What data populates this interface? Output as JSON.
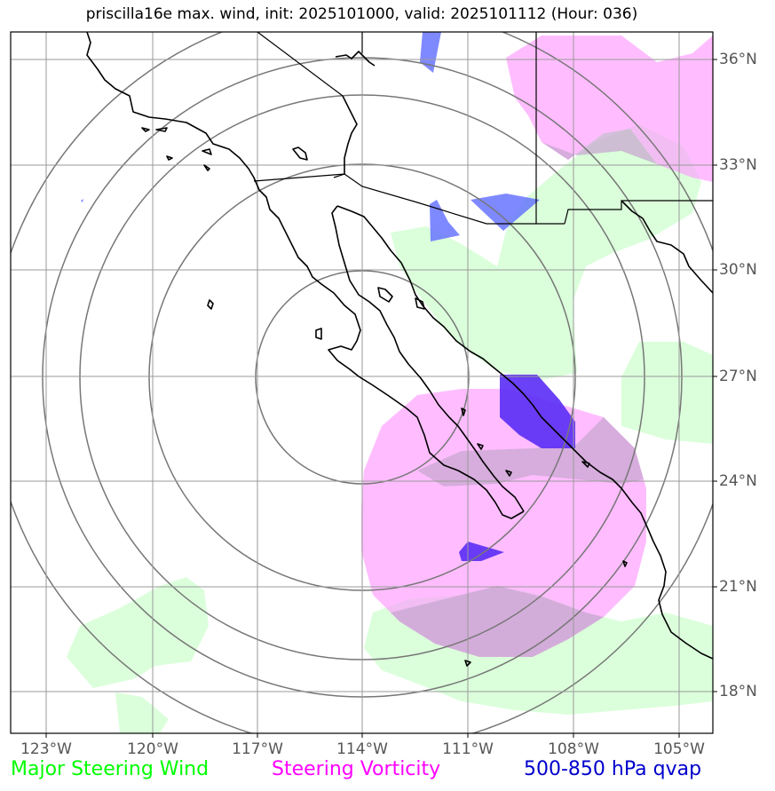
{
  "title": "priscilla16e max. wind, init: 2025101000, valid: 2025101112 (Hour: 036)",
  "lon_labels": [
    "123°W",
    "120°W",
    "117°W",
    "114°W",
    "111°W",
    "108°W",
    "105°W"
  ],
  "lat_labels": [
    "36°N",
    "33°N",
    "30°N",
    "27°N",
    "24°N",
    "21°N",
    "18°N"
  ],
  "legend": {
    "wind": "Major Steering Wind",
    "vorticity": "Steering Vorticity",
    "qvap": "500-850 hPa qvap"
  },
  "colors": {
    "wind": "#00ff00",
    "vorticity": "#ff00ff",
    "qvap": "#0000cc",
    "wind_fill": "#ccffcc",
    "vorticity_fill": "#ff99ff",
    "qvap_fill": "#4b3cff"
  }
}
